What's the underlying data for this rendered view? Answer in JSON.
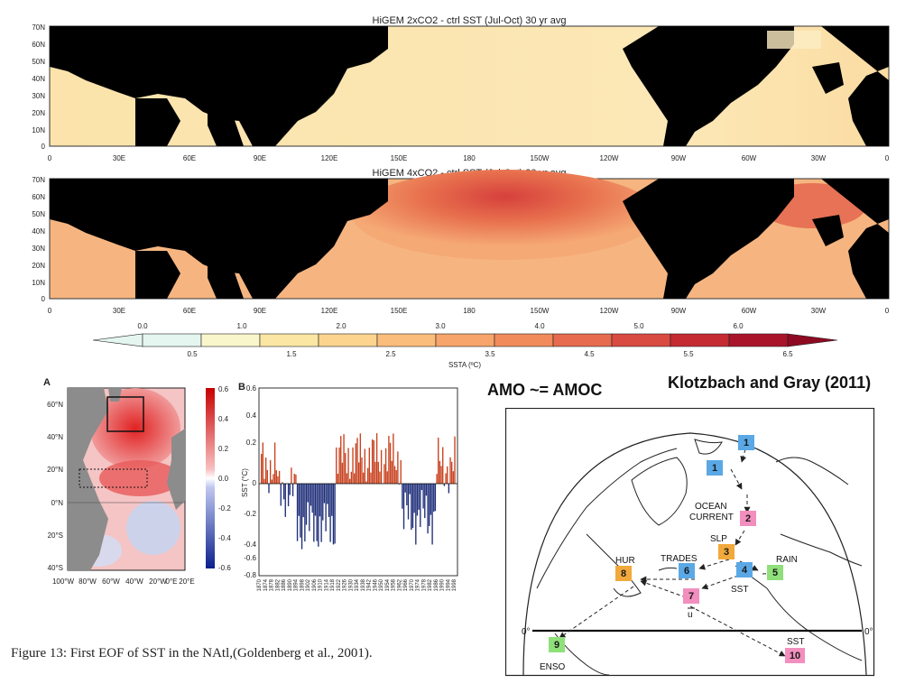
{
  "maps": [
    {
      "title": "HiGEM 2xCO2 - ctrl SST (Jul-Oct) 30 yr avg"
    },
    {
      "title": "HiGEM 4xCO2 - ctrl SST (Jul-Oct) 30 yr avg"
    }
  ],
  "map_axes": {
    "lat_labels": [
      "70N",
      "60N",
      "50N",
      "40N",
      "30N",
      "20N",
      "10N",
      "0"
    ],
    "lon_labels": [
      "0",
      "30E",
      "60E",
      "90E",
      "120E",
      "150E",
      "180",
      "150W",
      "120W",
      "90W",
      "60W",
      "30W",
      "0"
    ]
  },
  "colorbar": {
    "top_labels": [
      "0.0",
      "1.0",
      "2.0",
      "3.0",
      "4.0",
      "5.0",
      "6.0"
    ],
    "bottom_labels": [
      "0.5",
      "1.5",
      "2.5",
      "3.5",
      "4.5",
      "5.5",
      "6.5"
    ],
    "label": "SSTA (ºC)",
    "colors": [
      "#e4f6ef",
      "#f9f6cc",
      "#fbe6a4",
      "#fcd48e",
      "#fbbd7b",
      "#f7a56a",
      "#f18b5c",
      "#e76b4e",
      "#d94a40",
      "#c52a33",
      "#a9142a"
    ]
  },
  "panel_a": {
    "letter": "A",
    "lat_labels": [
      "60°N",
      "40°N",
      "20°N",
      "0°N",
      "20°S",
      "40°S"
    ],
    "lon_labels": [
      "100°W",
      "80°W",
      "60°W",
      "40°W",
      "20°W",
      "0°E",
      "20°E"
    ],
    "colorbar_labels": [
      "0.6",
      "0.4",
      "0.2",
      "0.0",
      "-0.2",
      "-0.4",
      "-0.6"
    ]
  },
  "panel_b": {
    "letter": "B",
    "ylabel": "SST (°C)",
    "ytick_labels": [
      "0.6",
      "0.4",
      "0.2",
      "0",
      "-0.2",
      "-0.4",
      "-0.6",
      "-0.8"
    ],
    "xtick_labels": [
      "1870",
      "1874",
      "1878",
      "1882",
      "1886",
      "1890",
      "1894",
      "1898",
      "1902",
      "1906",
      "1910",
      "1914",
      "1918",
      "1922",
      "1926",
      "1930",
      "1934",
      "1938",
      "1942",
      "1946",
      "1950",
      "1954",
      "1958",
      "1962",
      "1966",
      "1970",
      "1974",
      "1978",
      "1982",
      "1986",
      "1990",
      "1994",
      "1998"
    ]
  },
  "caption": "Figure 13: First EOF of SST in the NAtl,(Goldenberg et al., 2001).",
  "amo_heading": "AMO ~= AMOC",
  "klotzbach_heading": "Klotzbach and Gray (2011)",
  "diagram": {
    "equator_label": "0°",
    "labels": {
      "ocean": "OCEAN",
      "current": "CURRENT",
      "slp": "SLP",
      "trades": "TRADES",
      "rain": "RAIN",
      "hur": "HUR",
      "sst": "SST",
      "sst2": "SST",
      "u": "u",
      "enso": "ENSO"
    },
    "boxes": [
      {
        "id": "b1a",
        "num": "1",
        "color": "#5aa8e6"
      },
      {
        "id": "b1b",
        "num": "1",
        "color": "#5aa8e6"
      },
      {
        "id": "b2",
        "num": "2",
        "color": "#f28fbe"
      },
      {
        "id": "b3",
        "num": "3",
        "color": "#f2a93b"
      },
      {
        "id": "b4",
        "num": "4",
        "color": "#5aa8e6"
      },
      {
        "id": "b5",
        "num": "5",
        "color": "#8fe07a"
      },
      {
        "id": "b6",
        "num": "6",
        "color": "#5aa8e6"
      },
      {
        "id": "b7",
        "num": "7",
        "color": "#f28fbe"
      },
      {
        "id": "b8",
        "num": "8",
        "color": "#f2a93b"
      },
      {
        "id": "b9",
        "num": "9",
        "color": "#8fe07a"
      },
      {
        "id": "b10",
        "num": "10",
        "color": "#f28fbe"
      }
    ]
  }
}
